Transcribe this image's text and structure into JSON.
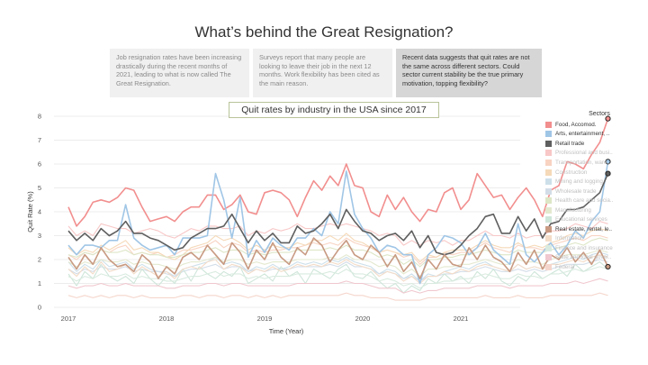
{
  "title": "What’s behind the Great Resignation?",
  "cards": [
    {
      "text": "Job resignation rates have been increasing drastically during the recent months of 2021, leading to what is now called The Great Resignation.",
      "active": false
    },
    {
      "text": "Surveys report that many people are looking to leave their job in the next 12 months. Work flexibility has been cited as the main reason.",
      "active": false
    },
    {
      "text": "Recent data suggests that quit rates are not the same across different sectors. Could sector current stability be the true primary motivation, topping flexibility?",
      "active": true
    }
  ],
  "chart_data": {
    "type": "line",
    "title": "Quit rates by industry in the USA since 2017",
    "xlabel": "Time (Year)",
    "ylabel": "Quit Rate (%)",
    "ylim": [
      0,
      8
    ],
    "yticks": [
      0,
      1,
      2,
      3,
      4,
      5,
      6,
      7,
      8
    ],
    "xticks": [
      "2017",
      "2018",
      "2019",
      "2020",
      "2021"
    ],
    "grid": true,
    "legend_title": "Sectors",
    "legend_position": "right",
    "series": [
      {
        "name": "Food, Accomod.",
        "color": "#f28e8e",
        "highlight": true,
        "end_marker": true,
        "values": [
          4.2,
          3.4,
          3.8,
          4.4,
          4.5,
          4.4,
          4.6,
          5.0,
          4.9,
          4.2,
          3.6,
          3.7,
          3.8,
          3.6,
          4.0,
          4.2,
          4.2,
          4.7,
          4.7,
          4.1,
          4.3,
          4.7,
          4.0,
          3.9,
          4.8,
          4.9,
          4.8,
          4.5,
          3.8,
          4.6,
          5.3,
          4.9,
          5.5,
          5.1,
          6.0,
          5.1,
          5.0,
          4.0,
          3.8,
          4.7,
          4.1,
          4.6,
          4.0,
          3.6,
          4.1,
          4.0,
          4.8,
          5.0,
          4.1,
          4.5,
          5.6,
          5.1,
          4.6,
          4.7,
          4.1,
          4.6,
          5.0,
          4.5,
          3.8,
          4.9,
          5.1,
          6.1,
          6.0,
          5.8,
          6.4,
          6.9,
          7.9
        ]
      },
      {
        "name": "Arts, entertainment, ..",
        "color": "#a0c6e6",
        "highlight": true,
        "end_marker": true,
        "values": [
          2.6,
          2.2,
          2.6,
          2.6,
          2.5,
          2.8,
          2.8,
          4.3,
          2.9,
          2.6,
          2.4,
          2.5,
          2.6,
          2.2,
          2.9,
          2.9,
          2.9,
          3.0,
          5.6,
          4.5,
          2.9,
          4.6,
          2.1,
          2.8,
          2.3,
          2.9,
          2.6,
          2.4,
          2.9,
          2.9,
          3.3,
          3.0,
          4.0,
          3.5,
          5.7,
          3.9,
          3.3,
          2.9,
          2.3,
          2.6,
          2.5,
          2.2,
          2.2,
          1.0,
          2.2,
          2.5,
          3.0,
          2.9,
          2.7,
          2.2,
          2.5,
          3.1,
          2.4,
          2.1,
          1.8,
          3.5,
          2.2,
          1.9,
          2.3,
          2.7,
          2.2,
          2.6,
          3.2,
          2.9,
          3.6,
          4.0,
          6.1
        ]
      },
      {
        "name": "Retail trade",
        "color": "#5f5f5f",
        "highlight": true,
        "end_marker": true,
        "values": [
          3.2,
          2.8,
          3.1,
          2.8,
          3.3,
          3.0,
          3.2,
          3.6,
          3.1,
          3.1,
          2.9,
          2.8,
          2.6,
          2.4,
          2.5,
          2.9,
          3.1,
          3.3,
          3.3,
          3.4,
          3.9,
          3.3,
          2.7,
          3.2,
          2.8,
          3.1,
          2.7,
          2.7,
          3.4,
          3.1,
          3.2,
          3.5,
          3.9,
          3.3,
          4.1,
          3.6,
          3.2,
          3.1,
          2.8,
          3.0,
          3.1,
          2.8,
          3.2,
          2.5,
          3.0,
          2.3,
          2.2,
          2.3,
          2.6,
          3.0,
          3.3,
          3.8,
          3.9,
          3.1,
          3.1,
          3.8,
          3.2,
          3.7,
          2.9,
          3.5,
          3.6,
          4.1,
          4.1,
          4.2,
          4.5,
          4.8,
          5.6
        ]
      },
      {
        "name": "Professional and busi..",
        "color": "#f8c7c7",
        "highlight": false,
        "end_marker": false,
        "values": [
          3.4,
          3.0,
          3.2,
          3.0,
          3.5,
          3.4,
          3.3,
          3.3,
          3.1,
          3.2,
          3.3,
          3.2,
          3.0,
          2.9,
          3.1,
          3.3,
          3.2,
          3.4,
          3.4,
          3.3,
          3.3,
          3.4,
          3.0,
          3.2,
          3.1,
          3.3,
          3.2,
          3.3,
          3.5,
          3.3,
          3.3,
          3.4,
          3.5,
          3.4,
          3.5,
          3.4,
          3.3,
          3.2,
          3.0,
          3.1,
          3.0,
          2.6,
          2.8,
          2.6,
          2.8,
          2.7,
          2.8,
          2.6,
          2.8,
          2.8,
          3.0,
          3.2,
          3.0,
          3.0,
          2.9,
          3.1,
          2.9,
          3.0,
          3.0,
          3.2,
          3.2,
          3.3,
          3.5,
          3.4,
          3.3,
          3.6,
          3.5
        ]
      },
      {
        "name": "Transportation, ware..",
        "color": "#f8d3c2",
        "highlight": false,
        "end_marker": false,
        "values": [
          2.2,
          2.0,
          2.3,
          2.2,
          2.4,
          2.3,
          2.5,
          2.6,
          2.2,
          2.3,
          2.2,
          2.3,
          2.1,
          2.2,
          2.4,
          2.4,
          2.5,
          2.6,
          2.8,
          2.5,
          2.7,
          2.6,
          2.3,
          2.4,
          2.3,
          2.4,
          2.4,
          2.5,
          2.5,
          2.6,
          2.7,
          2.6,
          2.7,
          2.6,
          2.9,
          2.7,
          2.6,
          2.5,
          2.3,
          2.4,
          2.3,
          2.1,
          2.2,
          1.8,
          2.1,
          2.1,
          2.3,
          2.2,
          2.3,
          2.3,
          2.5,
          2.7,
          2.5,
          2.4,
          2.3,
          2.6,
          2.5,
          2.5,
          2.4,
          2.6,
          2.7,
          2.8,
          2.9,
          2.8,
          3.0,
          3.0,
          2.9
        ]
      },
      {
        "name": "Construction",
        "color": "#f5d9b8",
        "highlight": false,
        "end_marker": false,
        "values": [
          2.5,
          2.2,
          2.4,
          2.3,
          2.6,
          2.4,
          2.6,
          2.8,
          2.4,
          2.5,
          2.3,
          2.3,
          2.1,
          2.0,
          2.2,
          2.5,
          2.6,
          2.7,
          3.0,
          2.8,
          2.9,
          2.7,
          2.4,
          2.6,
          2.4,
          2.6,
          2.5,
          2.5,
          2.7,
          2.6,
          2.8,
          2.8,
          3.0,
          2.8,
          3.1,
          2.8,
          2.7,
          2.5,
          2.3,
          2.4,
          2.3,
          2.2,
          2.3,
          1.9,
          2.2,
          2.1,
          2.3,
          2.4,
          2.4,
          2.4,
          2.6,
          2.8,
          2.6,
          2.5,
          2.5,
          2.7,
          2.5,
          2.6,
          2.5,
          2.7,
          2.8,
          3.0,
          3.1,
          3.0,
          3.2,
          3.3,
          3.2
        ]
      },
      {
        "name": "Mining and logging",
        "color": "#cde0ea",
        "highlight": false,
        "end_marker": false,
        "values": [
          1.9,
          1.5,
          1.8,
          1.6,
          2.0,
          1.7,
          1.8,
          1.9,
          1.6,
          1.8,
          1.6,
          1.5,
          1.5,
          1.3,
          1.6,
          1.7,
          1.8,
          1.9,
          2.1,
          1.8,
          1.9,
          1.8,
          1.5,
          1.7,
          1.6,
          1.8,
          1.6,
          1.7,
          1.9,
          1.8,
          1.9,
          1.8,
          2.0,
          1.9,
          2.1,
          1.9,
          1.8,
          1.7,
          1.4,
          1.6,
          1.5,
          1.2,
          1.4,
          1.1,
          1.4,
          1.3,
          1.5,
          1.6,
          1.7,
          1.6,
          1.8,
          1.9,
          1.7,
          1.6,
          1.5,
          1.8,
          1.6,
          1.7,
          1.6,
          1.8,
          1.9,
          2.0,
          2.1,
          2.0,
          2.2,
          2.3,
          2.2
        ]
      },
      {
        "name": "Wholesale trade",
        "color": "#d3dde8",
        "highlight": false,
        "end_marker": false,
        "values": [
          1.6,
          1.4,
          1.6,
          1.5,
          1.7,
          1.6,
          1.6,
          1.7,
          1.5,
          1.6,
          1.5,
          1.5,
          1.4,
          1.3,
          1.5,
          1.6,
          1.6,
          1.7,
          1.8,
          1.6,
          1.7,
          1.7,
          1.5,
          1.6,
          1.5,
          1.6,
          1.6,
          1.6,
          1.7,
          1.7,
          1.7,
          1.7,
          1.8,
          1.7,
          1.9,
          1.7,
          1.7,
          1.6,
          1.4,
          1.5,
          1.4,
          1.2,
          1.3,
          1.1,
          1.3,
          1.3,
          1.4,
          1.4,
          1.5,
          1.5,
          1.6,
          1.7,
          1.6,
          1.5,
          1.5,
          1.6,
          1.5,
          1.6,
          1.5,
          1.6,
          1.7,
          1.8,
          1.8,
          1.8,
          1.9,
          2.0,
          1.9
        ]
      },
      {
        "name": "Health care and socia..",
        "color": "#dde6c6",
        "highlight": false,
        "end_marker": false,
        "values": [
          2.2,
          2.1,
          2.3,
          2.2,
          2.4,
          2.3,
          2.3,
          2.4,
          2.2,
          2.3,
          2.2,
          2.2,
          2.1,
          2.1,
          2.2,
          2.3,
          2.3,
          2.4,
          2.5,
          2.3,
          2.4,
          2.4,
          2.2,
          2.3,
          2.2,
          2.3,
          2.3,
          2.3,
          2.4,
          2.4,
          2.4,
          2.4,
          2.5,
          2.4,
          2.6,
          2.4,
          2.4,
          2.3,
          2.1,
          2.2,
          2.1,
          1.8,
          2.0,
          1.7,
          2.0,
          2.0,
          2.1,
          2.1,
          2.2,
          2.2,
          2.3,
          2.4,
          2.3,
          2.2,
          2.2,
          2.4,
          2.3,
          2.3,
          2.3,
          2.4,
          2.5,
          2.6,
          2.7,
          2.6,
          2.8,
          2.9,
          2.8
        ]
      },
      {
        "name": "Manufacturing",
        "color": "#e3e9cf",
        "highlight": false,
        "end_marker": false,
        "values": [
          1.9,
          1.7,
          1.9,
          1.8,
          2.0,
          1.9,
          1.9,
          2.0,
          1.8,
          1.9,
          1.8,
          1.8,
          1.7,
          1.6,
          1.8,
          1.9,
          1.9,
          2.0,
          2.1,
          1.9,
          2.0,
          2.0,
          1.8,
          1.9,
          1.8,
          1.9,
          1.9,
          1.9,
          2.0,
          2.0,
          2.0,
          2.0,
          2.1,
          2.0,
          2.2,
          2.0,
          2.0,
          1.9,
          1.7,
          1.8,
          1.7,
          1.4,
          1.6,
          1.3,
          1.6,
          1.6,
          1.7,
          1.7,
          1.8,
          1.8,
          1.9,
          2.0,
          1.9,
          1.8,
          1.8,
          2.0,
          1.9,
          1.9,
          1.8,
          2.0,
          2.1,
          2.2,
          2.2,
          2.2,
          2.3,
          2.4,
          2.3
        ]
      },
      {
        "name": "Educational services",
        "color": "#cfe6da",
        "highlight": false,
        "end_marker": false,
        "values": [
          1.4,
          0.9,
          1.5,
          1.2,
          1.8,
          1.3,
          1.1,
          1.3,
          1.0,
          1.6,
          1.2,
          0.9,
          1.3,
          1.0,
          1.6,
          1.1,
          1.7,
          1.4,
          1.2,
          1.5,
          1.3,
          1.7,
          1.0,
          1.2,
          1.4,
          1.1,
          1.7,
          1.3,
          1.5,
          1.0,
          1.6,
          1.4,
          1.2,
          1.6,
          1.8,
          1.3,
          1.2,
          1.5,
          1.1,
          0.8,
          1.0,
          0.6,
          0.9,
          0.7,
          1.2,
          1.0,
          1.4,
          1.1,
          1.3,
          1.0,
          1.5,
          1.2,
          1.6,
          1.1,
          0.9,
          1.3,
          1.1,
          1.5,
          1.2,
          1.4,
          1.6,
          1.3,
          1.8,
          1.5,
          1.7,
          1.9,
          1.6
        ]
      },
      {
        "name": "Real estate, rental, le..",
        "color": "#c89a82",
        "highlight": true,
        "end_marker": true,
        "values": [
          2.1,
          1.6,
          2.2,
          1.8,
          2.5,
          2.0,
          1.7,
          1.8,
          1.5,
          2.2,
          1.9,
          1.2,
          1.7,
          1.4,
          2.1,
          2.3,
          2.0,
          2.6,
          2.2,
          1.8,
          2.7,
          2.3,
          1.6,
          2.4,
          2.0,
          2.7,
          2.1,
          1.8,
          2.5,
          2.2,
          2.9,
          2.6,
          1.9,
          2.4,
          2.8,
          2.2,
          2.0,
          2.6,
          2.3,
          1.7,
          2.2,
          1.5,
          1.9,
          1.2,
          2.0,
          1.6,
          2.2,
          1.8,
          1.7,
          2.5,
          2.0,
          2.6,
          2.1,
          1.9,
          1.5,
          2.3,
          1.8,
          2.4,
          1.6,
          2.2,
          2.0,
          2.5,
          1.9,
          2.3,
          1.8,
          2.4,
          1.7
        ]
      },
      {
        "name": "Information",
        "color": "#f3dcc8",
        "highlight": false,
        "end_marker": false,
        "values": [
          1.6,
          1.3,
          1.7,
          1.4,
          1.9,
          1.5,
          1.6,
          1.8,
          1.4,
          1.7,
          1.5,
          1.3,
          1.5,
          1.2,
          1.6,
          1.7,
          1.6,
          1.9,
          2.0,
          1.6,
          1.8,
          1.7,
          1.4,
          1.6,
          1.5,
          1.7,
          1.5,
          1.6,
          1.8,
          1.7,
          1.8,
          1.7,
          1.9,
          1.8,
          2.0,
          1.8,
          1.7,
          1.6,
          1.3,
          1.5,
          1.4,
          1.1,
          1.3,
          1.0,
          1.3,
          1.3,
          1.5,
          1.4,
          1.6,
          1.5,
          1.7,
          1.8,
          1.7,
          1.6,
          1.5,
          1.8,
          1.6,
          1.7,
          1.6,
          1.8,
          1.8,
          1.9,
          2.0,
          1.9,
          2.1,
          2.2,
          2.1
        ]
      },
      {
        "name": "Finance and insurance",
        "color": "#d9ebe0",
        "highlight": false,
        "end_marker": false,
        "values": [
          1.3,
          1.1,
          1.3,
          1.2,
          1.4,
          1.3,
          1.3,
          1.4,
          1.2,
          1.3,
          1.2,
          1.2,
          1.1,
          1.1,
          1.2,
          1.3,
          1.3,
          1.4,
          1.5,
          1.3,
          1.4,
          1.4,
          1.2,
          1.3,
          1.2,
          1.3,
          1.3,
          1.3,
          1.4,
          1.4,
          1.4,
          1.4,
          1.5,
          1.4,
          1.6,
          1.4,
          1.4,
          1.3,
          1.1,
          1.2,
          1.1,
          0.9,
          1.0,
          0.8,
          1.0,
          1.0,
          1.1,
          1.1,
          1.2,
          1.2,
          1.3,
          1.4,
          1.3,
          1.2,
          1.2,
          1.4,
          1.3,
          1.3,
          1.2,
          1.4,
          1.4,
          1.5,
          1.6,
          1.5,
          1.6,
          1.7,
          1.6
        ]
      },
      {
        "name": "State and local gover..",
        "color": "#f0c8cf",
        "highlight": false,
        "end_marker": false,
        "values": [
          0.9,
          0.8,
          0.9,
          0.9,
          1.0,
          0.9,
          0.9,
          1.0,
          0.9,
          0.9,
          0.9,
          0.9,
          0.8,
          0.8,
          0.9,
          0.9,
          0.9,
          1.0,
          1.0,
          0.9,
          1.0,
          1.0,
          0.9,
          0.9,
          0.9,
          0.9,
          0.9,
          0.9,
          1.0,
          1.0,
          1.0,
          1.0,
          1.0,
          1.0,
          1.1,
          1.0,
          1.0,
          0.9,
          0.8,
          0.8,
          0.8,
          0.6,
          0.7,
          0.6,
          0.7,
          0.7,
          0.8,
          0.8,
          0.8,
          0.8,
          0.9,
          0.9,
          0.9,
          0.9,
          0.8,
          0.9,
          0.9,
          0.9,
          0.9,
          1.0,
          1.0,
          1.0,
          1.1,
          1.0,
          1.1,
          1.2,
          1.1
        ]
      },
      {
        "name": "Federal",
        "color": "#f5d6cc",
        "highlight": false,
        "end_marker": false,
        "values": [
          0.5,
          0.4,
          0.5,
          0.4,
          0.5,
          0.4,
          0.5,
          0.5,
          0.4,
          0.5,
          0.4,
          0.4,
          0.4,
          0.4,
          0.5,
          0.5,
          0.4,
          0.5,
          0.5,
          0.4,
          0.5,
          0.5,
          0.4,
          0.5,
          0.4,
          0.5,
          0.4,
          0.5,
          0.5,
          0.5,
          0.5,
          0.5,
          0.5,
          0.5,
          0.6,
          0.5,
          0.5,
          0.4,
          0.4,
          0.4,
          0.3,
          0.3,
          0.3,
          0.3,
          0.4,
          0.4,
          0.4,
          0.4,
          0.4,
          0.4,
          0.4,
          0.5,
          0.4,
          0.4,
          0.4,
          0.5,
          0.4,
          0.4,
          0.4,
          0.5,
          0.5,
          0.5,
          0.5,
          0.5,
          0.5,
          0.6,
          0.5
        ]
      }
    ]
  }
}
